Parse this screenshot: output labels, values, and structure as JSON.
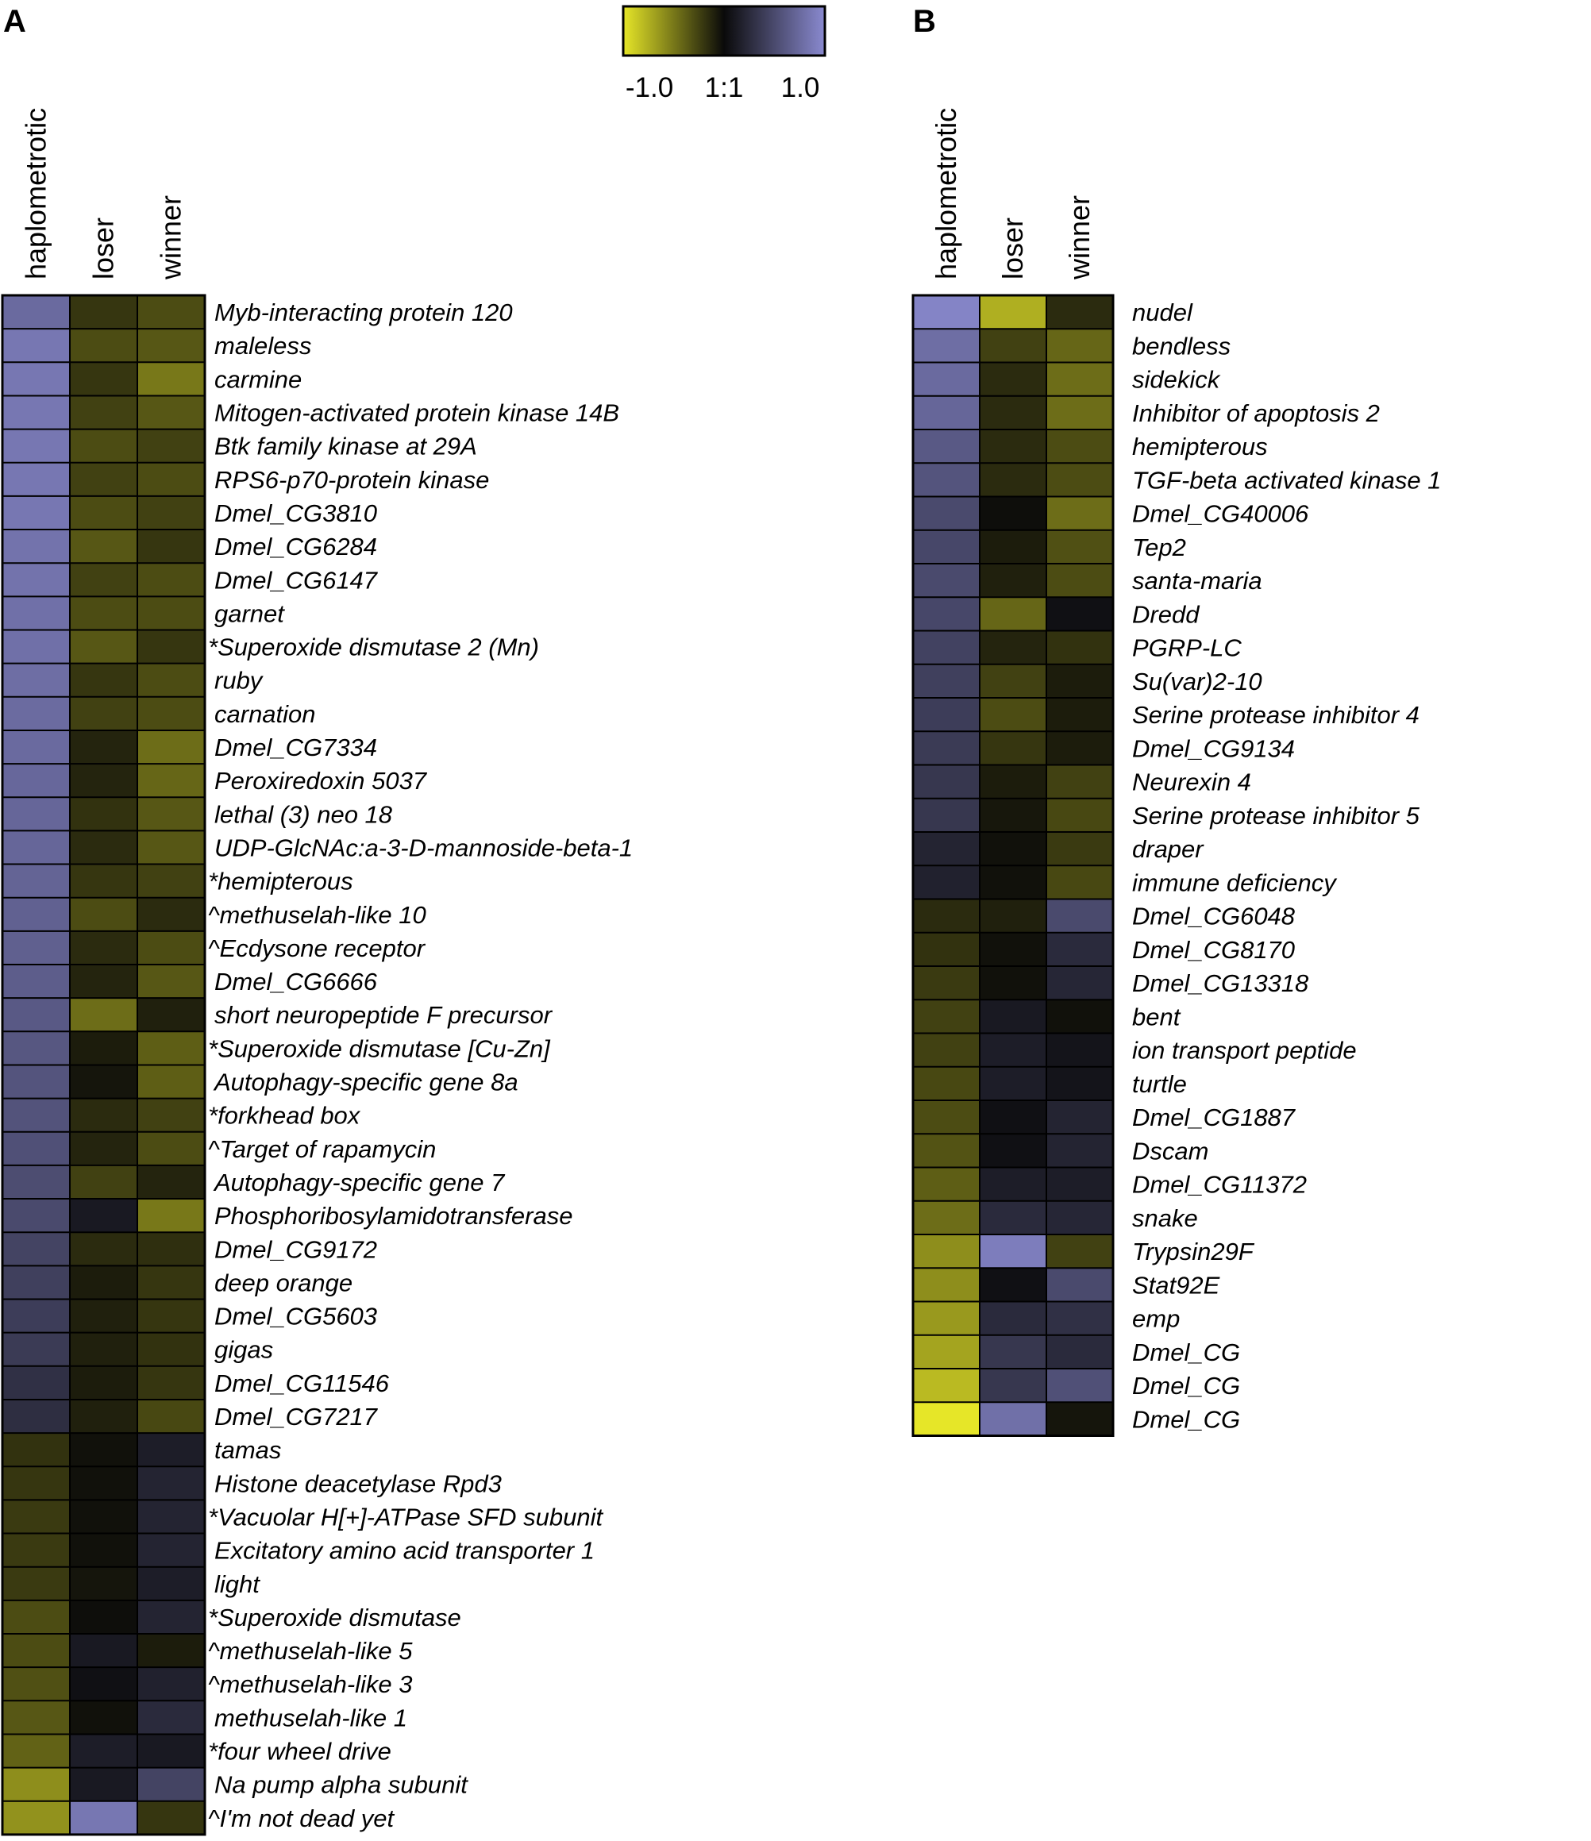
{
  "chart_data": [
    {
      "type": "heatmap",
      "panel": "A",
      "columns": [
        "haplometrotic",
        "loser",
        "winner"
      ],
      "rows": [
        "Myb-interacting protein 120",
        "maleless",
        "carmine",
        "Mitogen-activated protein kinase 14B",
        "Btk family kinase at 29A",
        "RPS6-p70-protein kinase",
        "Dmel_CG3810",
        "Dmel_CG6284",
        "Dmel_CG6147",
        "garnet",
        "*Superoxide dismutase 2 (Mn)",
        "ruby",
        "carnation",
        "Dmel_CG7334",
        "Peroxiredoxin 5037",
        "lethal (3) neo 18",
        "UDP-GlcNAc:a-3-D-mannoside-beta-1",
        "*hemipterous",
        "^methuselah-like 10",
        "^Ecdysone receptor",
        "Dmel_CG6666",
        "short neuropeptide F precursor",
        "*Superoxide dismutase [Cu-Zn]",
        "Autophagy-specific gene 8a",
        "*forkhead box",
        "^Target of rapamycin",
        "Autophagy-specific gene 7",
        "Phosphoribosylamidotransferase",
        "Dmel_CG9172",
        "deep orange",
        "Dmel_CG5603",
        "gigas",
        "Dmel_CG11546",
        "Dmel_CG7217",
        "tamas",
        "Histone deacetylase Rpd3",
        "*Vacuolar H[+]-ATPase SFD subunit",
        "Excitatory amino acid transporter 1",
        "light",
        "*Superoxide dismutase",
        "^methuselah-like 5",
        "^methuselah-like 3",
        "methuselah-like 1",
        "*four wheel drive",
        "Na pump alpha subunit",
        "^I'm not dead yet"
      ],
      "values": [
        [
          0.75,
          -0.2,
          -0.3
        ],
        [
          0.85,
          -0.3,
          -0.35
        ],
        [
          0.85,
          -0.2,
          -0.5
        ],
        [
          0.85,
          -0.25,
          -0.35
        ],
        [
          0.85,
          -0.3,
          -0.25
        ],
        [
          0.85,
          -0.25,
          -0.3
        ],
        [
          0.85,
          -0.3,
          -0.25
        ],
        [
          0.82,
          -0.35,
          -0.2
        ],
        [
          0.82,
          -0.25,
          -0.3
        ],
        [
          0.8,
          -0.3,
          -0.3
        ],
        [
          0.8,
          -0.35,
          -0.2
        ],
        [
          0.78,
          -0.2,
          -0.3
        ],
        [
          0.76,
          -0.25,
          -0.3
        ],
        [
          0.75,
          -0.12,
          -0.45
        ],
        [
          0.73,
          -0.12,
          -0.42
        ],
        [
          0.72,
          -0.18,
          -0.35
        ],
        [
          0.72,
          -0.15,
          -0.35
        ],
        [
          0.7,
          -0.2,
          -0.25
        ],
        [
          0.68,
          -0.3,
          -0.15
        ],
        [
          0.67,
          -0.15,
          -0.3
        ],
        [
          0.65,
          -0.12,
          -0.35
        ],
        [
          0.62,
          -0.45,
          -0.1
        ],
        [
          0.6,
          -0.08,
          -0.38
        ],
        [
          0.58,
          -0.05,
          -0.38
        ],
        [
          0.57,
          -0.15,
          -0.25
        ],
        [
          0.55,
          -0.12,
          -0.3
        ],
        [
          0.52,
          -0.25,
          -0.12
        ],
        [
          0.5,
          0.12,
          -0.5
        ],
        [
          0.45,
          -0.15,
          -0.17
        ],
        [
          0.42,
          -0.08,
          -0.2
        ],
        [
          0.4,
          -0.1,
          -0.2
        ],
        [
          0.38,
          -0.1,
          -0.18
        ],
        [
          0.3,
          -0.08,
          -0.2
        ],
        [
          0.28,
          -0.1,
          -0.28
        ],
        [
          -0.18,
          -0.03,
          0.15
        ],
        [
          -0.2,
          -0.03,
          0.2
        ],
        [
          -0.22,
          -0.03,
          0.2
        ],
        [
          -0.22,
          -0.03,
          0.2
        ],
        [
          -0.22,
          -0.05,
          0.15
        ],
        [
          -0.3,
          -0.02,
          0.2
        ],
        [
          -0.3,
          0.12,
          -0.08
        ],
        [
          -0.32,
          0.05,
          0.18
        ],
        [
          -0.35,
          -0.03,
          0.25
        ],
        [
          -0.4,
          0.15,
          0.12
        ],
        [
          -0.6,
          0.12,
          0.45
        ],
        [
          -0.62,
          0.85,
          -0.2
        ]
      ]
    },
    {
      "type": "heatmap",
      "panel": "B",
      "columns": [
        "haplometrotic",
        "loser",
        "winner"
      ],
      "rows": [
        "nudel",
        "bendless",
        "sidekick",
        "Inhibitor of apoptosis 2",
        "hemipterous",
        "TGF-beta activated kinase 1",
        "Dmel_CG40006",
        "Tep2",
        "santa-maria",
        "Dredd",
        "PGRP-LC",
        "Su(var)2-10",
        "Serine protease inhibitor 4",
        "Dmel_CG9134",
        "Neurexin 4",
        "Serine protease inhibitor 5",
        "draper",
        "immune deficiency",
        "Dmel_CG6048",
        "Dmel_CG8170",
        "Dmel_CG13318",
        "bent",
        "ion transport peptide",
        "turtle",
        "Dmel_CG1887",
        "Dscam",
        "Dmel_CG11372",
        "snake",
        "Trypsin29F",
        "Stat92E",
        "emp",
        "Dmel_CG",
        "Dmel_CG",
        "Dmel_CG"
      ],
      "values": [
        [
          0.95,
          -0.75,
          -0.15
        ],
        [
          0.78,
          -0.25,
          -0.42
        ],
        [
          0.75,
          -0.15,
          -0.45
        ],
        [
          0.72,
          -0.15,
          -0.45
        ],
        [
          0.62,
          -0.15,
          -0.3
        ],
        [
          0.58,
          -0.15,
          -0.3
        ],
        [
          0.5,
          -0.02,
          -0.45
        ],
        [
          0.48,
          -0.08,
          -0.32
        ],
        [
          0.5,
          -0.1,
          -0.3
        ],
        [
          0.48,
          -0.42,
          0.05
        ],
        [
          0.44,
          -0.12,
          -0.18
        ],
        [
          0.42,
          -0.25,
          -0.08
        ],
        [
          0.4,
          -0.3,
          -0.08
        ],
        [
          0.38,
          -0.2,
          -0.08
        ],
        [
          0.35,
          -0.08,
          -0.25
        ],
        [
          0.35,
          -0.06,
          -0.28
        ],
        [
          0.2,
          -0.03,
          -0.22
        ],
        [
          0.18,
          -0.03,
          -0.28
        ],
        [
          -0.15,
          -0.1,
          0.5
        ],
        [
          -0.18,
          -0.03,
          0.25
        ],
        [
          -0.22,
          -0.03,
          0.22
        ],
        [
          -0.25,
          0.12,
          -0.03
        ],
        [
          -0.25,
          0.15,
          0.08
        ],
        [
          -0.28,
          0.15,
          0.08
        ],
        [
          -0.3,
          0.05,
          0.2
        ],
        [
          -0.33,
          0.05,
          0.2
        ],
        [
          -0.38,
          0.15,
          0.15
        ],
        [
          -0.45,
          0.25,
          0.22
        ],
        [
          -0.6,
          0.9,
          -0.25
        ],
        [
          -0.6,
          0.05,
          0.5
        ],
        [
          -0.65,
          0.25,
          0.3
        ],
        [
          -0.7,
          0.35,
          0.25
        ],
        [
          -0.8,
          0.35,
          0.55
        ],
        [
          -1.0,
          0.8,
          -0.05
        ]
      ]
    }
  ],
  "scale": {
    "min_label": "-1.0",
    "mid_label": "1:1",
    "max_label": "1.0",
    "low_color": "#e6e628",
    "mid_color": "#0a0a0a",
    "high_color": "#8a8ad0"
  }
}
